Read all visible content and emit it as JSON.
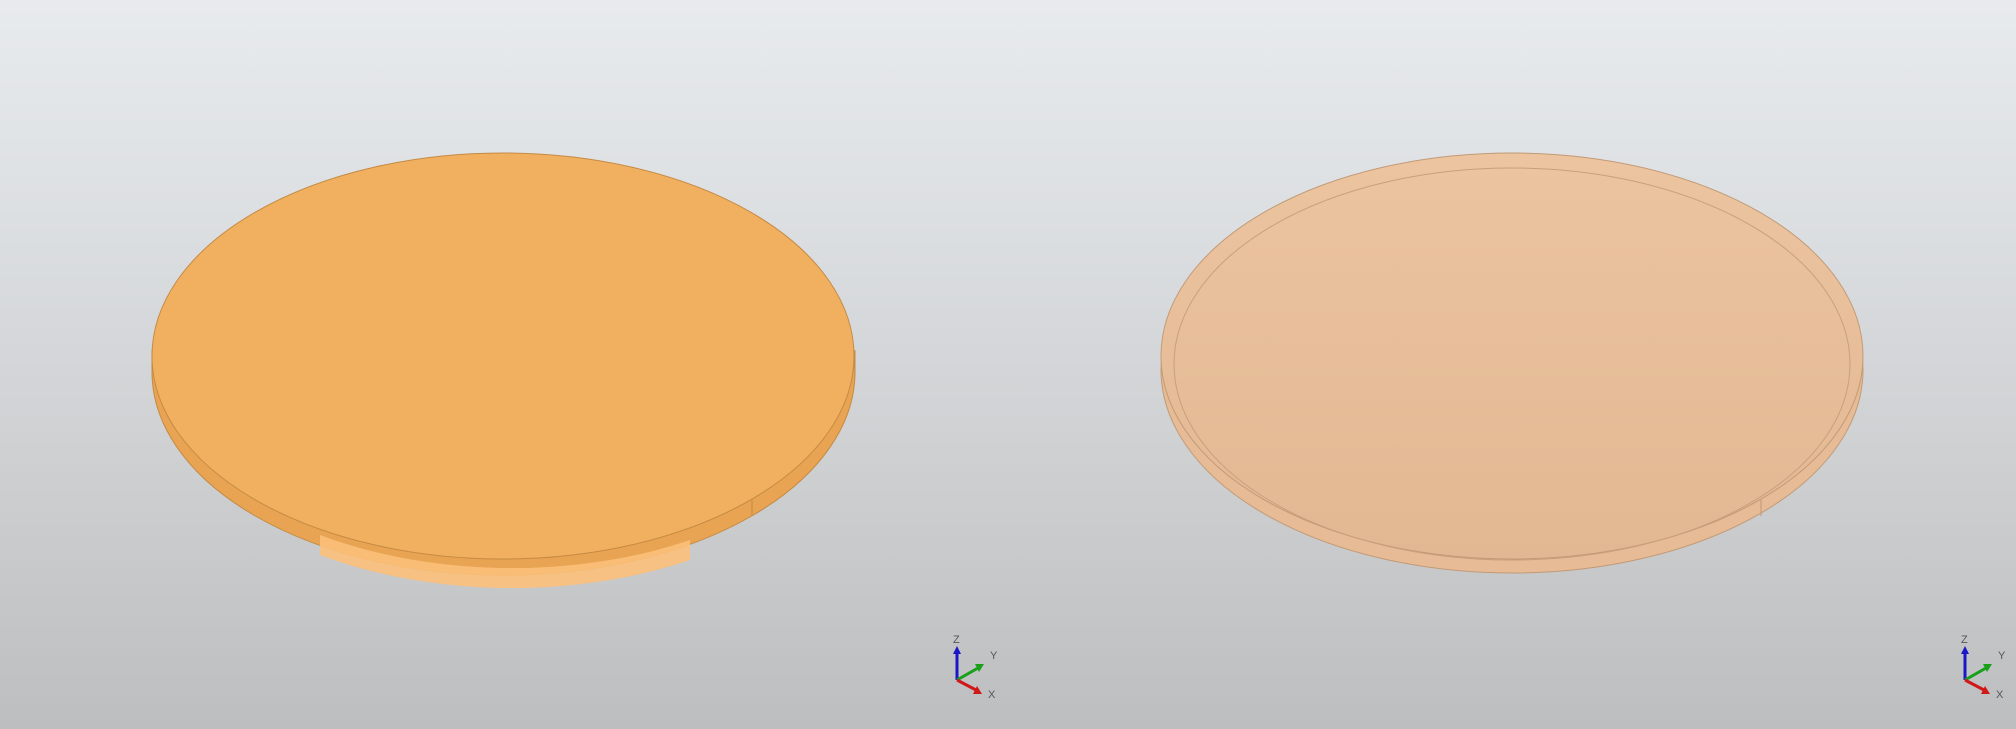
{
  "viewports": [
    {
      "id": "left",
      "render_mode": "shaded-with-edges",
      "model": {
        "shape": "disc",
        "top_color": "#f0b060",
        "side_color": "#e8a452",
        "rim_highlight": "#fbc07a",
        "edge_color": "#c68a44"
      },
      "triad": {
        "x_label": "X",
        "y_label": "Y",
        "z_label": "Z"
      }
    },
    {
      "id": "right",
      "render_mode": "transparent-with-edges",
      "model": {
        "shape": "disc",
        "top_color": "#e8c09c",
        "side_color": "#e6bb95",
        "rim_highlight": "#ecc6a4",
        "edge_color": "#c29a76"
      },
      "triad": {
        "x_label": "X",
        "y_label": "Y",
        "z_label": "Z"
      }
    }
  ],
  "axis_colors": {
    "x": "#d01818",
    "y": "#18a018",
    "z": "#1818c8"
  }
}
